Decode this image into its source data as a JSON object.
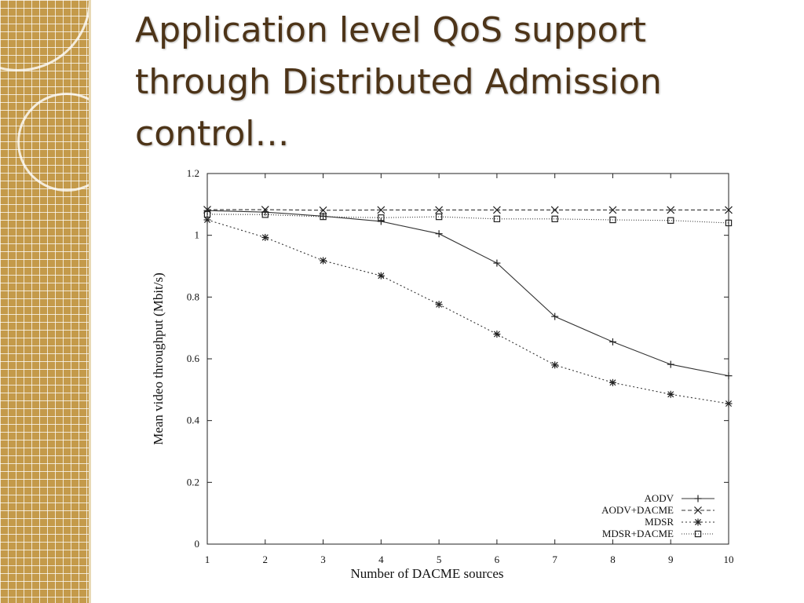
{
  "slide": {
    "title": "Application level QoS support through Distributed Admission control…"
  },
  "chart_data": {
    "type": "line",
    "title": "",
    "xlabel": "Number of DACME sources",
    "ylabel": "Mean video throughput (Mbit/s)",
    "xlim": [
      1,
      10
    ],
    "ylim": [
      0,
      1.2
    ],
    "x": [
      1,
      2,
      3,
      4,
      5,
      6,
      7,
      8,
      9,
      10
    ],
    "x_ticks": [
      "1",
      "2",
      "3",
      "4",
      "5",
      "6",
      "7",
      "8",
      "9",
      "10"
    ],
    "y_ticks": [
      "0",
      "0.2",
      "0.4",
      "0.6",
      "0.8",
      "1",
      "1.2"
    ],
    "y_tick_values": [
      0,
      0.2,
      0.4,
      0.6,
      0.8,
      1.0,
      1.2
    ],
    "grid": false,
    "legend_position": "bottom-right",
    "series": [
      {
        "name": "AODV",
        "marker": "plus",
        "dash": "solid",
        "values": [
          1.08,
          1.075,
          1.062,
          1.045,
          1.005,
          0.91,
          0.737,
          0.655,
          0.582,
          0.545
        ]
      },
      {
        "name": "AODV+DACME",
        "marker": "x",
        "dash": "dashed",
        "values": [
          1.083,
          1.083,
          1.081,
          1.082,
          1.082,
          1.082,
          1.082,
          1.082,
          1.082,
          1.082
        ]
      },
      {
        "name": "MDSR",
        "marker": "star",
        "dash": "dotted",
        "values": [
          1.05,
          0.993,
          0.918,
          0.869,
          0.776,
          0.68,
          0.58,
          0.523,
          0.485,
          0.455
        ]
      },
      {
        "name": "MDSR+DACME",
        "marker": "square",
        "dash": "fine-dotted",
        "values": [
          1.068,
          1.067,
          1.06,
          1.057,
          1.06,
          1.053,
          1.053,
          1.05,
          1.048,
          1.04
        ]
      }
    ]
  }
}
